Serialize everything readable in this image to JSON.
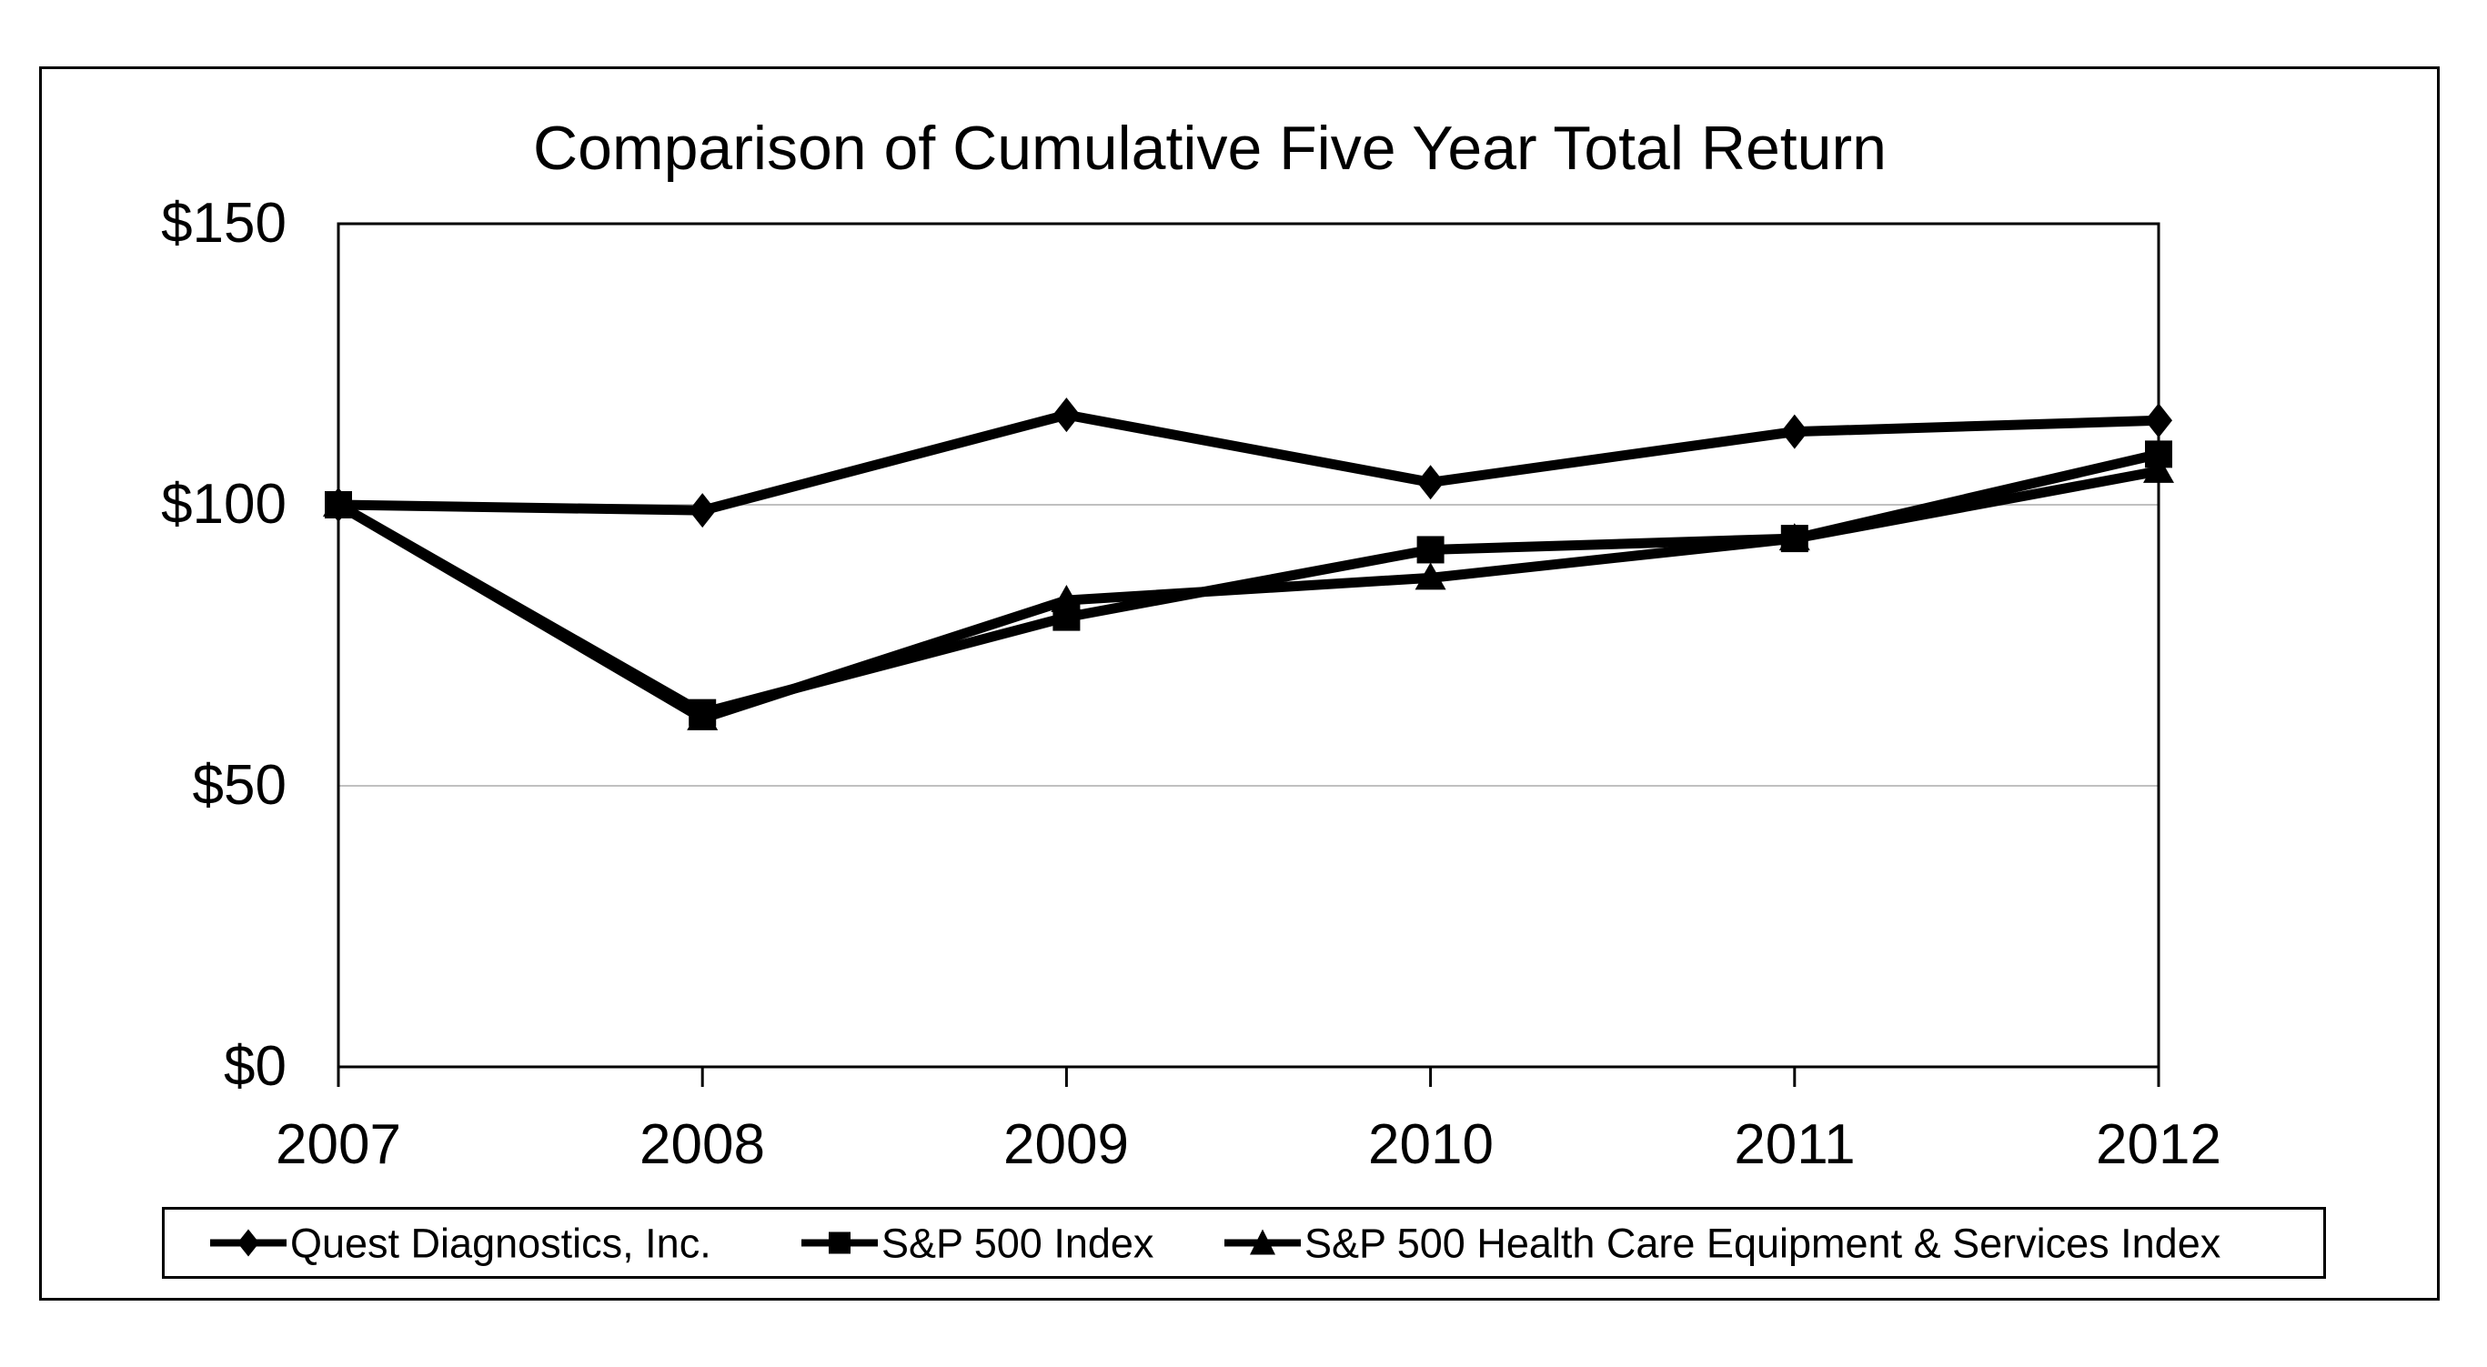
{
  "figure": {
    "title": "Comparison of Cumulative Five Year Total Return"
  },
  "chart_data": {
    "type": "line",
    "title": "Comparison of Cumulative Five Year Total Return",
    "categories": [
      "2007",
      "2008",
      "2009",
      "2010",
      "2011",
      "2012"
    ],
    "y_tick_labels": [
      "$150",
      "$100",
      "$50",
      "$0"
    ],
    "y_tick_values": [
      150,
      100,
      50,
      0
    ],
    "ylim": [
      0,
      150
    ],
    "grid_values": [
      50,
      100
    ],
    "grid_on": true,
    "legend_position": "bottom",
    "series": [
      {
        "name": "Quest Diagnostics, Inc.",
        "marker": "diamond",
        "color": "#000000",
        "values": [
          100,
          99,
          116,
          104,
          113,
          115
        ]
      },
      {
        "name": "S&P 500 Index",
        "marker": "square",
        "color": "#000000",
        "values": [
          100,
          63,
          80,
          92,
          94,
          109
        ]
      },
      {
        "name": "S&P 500 Health Care Equipment & Services Index",
        "marker": "triangle",
        "color": "#000000",
        "values": [
          100,
          62,
          83,
          87,
          94,
          106
        ]
      }
    ],
    "colors": {
      "line": "#000000",
      "grid": "#c0c0c0",
      "axis": "#000000",
      "background": "#ffffff"
    }
  }
}
